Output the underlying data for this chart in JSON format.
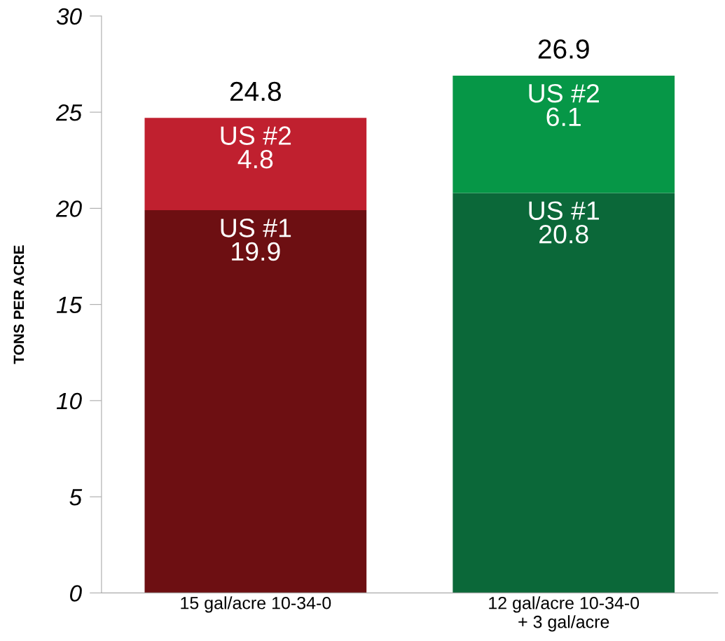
{
  "chart_data": {
    "type": "bar",
    "stacked": true,
    "ylabel": "TONS PER ACRE",
    "categories": [
      "15 gal/acre 10-34-0",
      "12 gal/acre 10-34-0\n+ 3 gal/acre"
    ],
    "series": [
      {
        "name": "US #1",
        "colors": [
          "#6d0f12",
          "#0b6839"
        ],
        "values": [
          19.9,
          20.8
        ]
      },
      {
        "name": "US #2",
        "colors": [
          "#c0202f",
          "#069747"
        ],
        "values": [
          4.8,
          6.1
        ]
      }
    ],
    "data_labels": true,
    "totals": [
      "24.8",
      "26.9"
    ],
    "ylim": [
      0,
      30
    ],
    "yticks": [
      0,
      5,
      10,
      15,
      20,
      25,
      30
    ],
    "grid": false,
    "legend": false
  }
}
